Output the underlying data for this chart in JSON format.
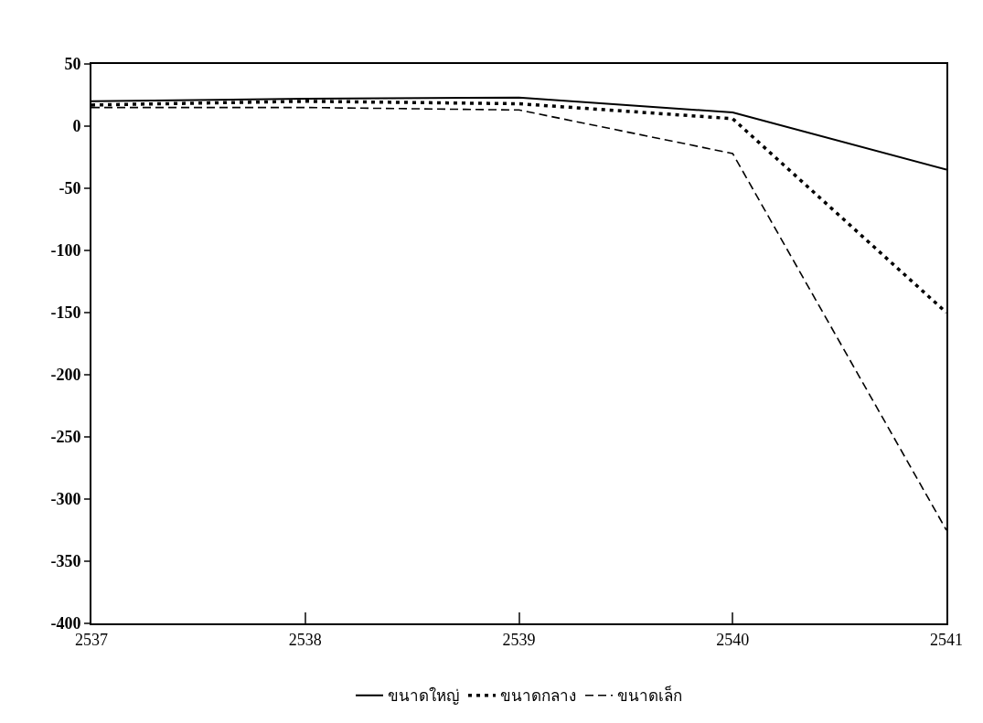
{
  "chart_data": {
    "type": "line",
    "x": [
      2537,
      2538,
      2539,
      2540,
      2541
    ],
    "series": [
      {
        "name": "ขนาดใหญ่",
        "color": "#000000",
        "line_style": "solid",
        "values": [
          20,
          22,
          23,
          11,
          -35
        ]
      },
      {
        "name": "ขนาดกลาง",
        "color": "#000000",
        "line_style": "dotted",
        "values": [
          17,
          20,
          18,
          6,
          -150
        ]
      },
      {
        "name": "ขนาดเล็ก",
        "color": "#000000",
        "line_style": "dashed",
        "values": [
          15,
          15,
          13,
          -22,
          -325
        ]
      }
    ],
    "xlim": [
      2537,
      2541
    ],
    "xticks": [
      2537,
      2538,
      2539,
      2540,
      2541
    ],
    "ylim": [
      -400,
      50
    ],
    "yticks": [
      -400,
      -350,
      -300,
      -250,
      -200,
      -150,
      -100,
      -50,
      0,
      50
    ],
    "grid": false,
    "legend": "bottom",
    "marker": "none"
  }
}
